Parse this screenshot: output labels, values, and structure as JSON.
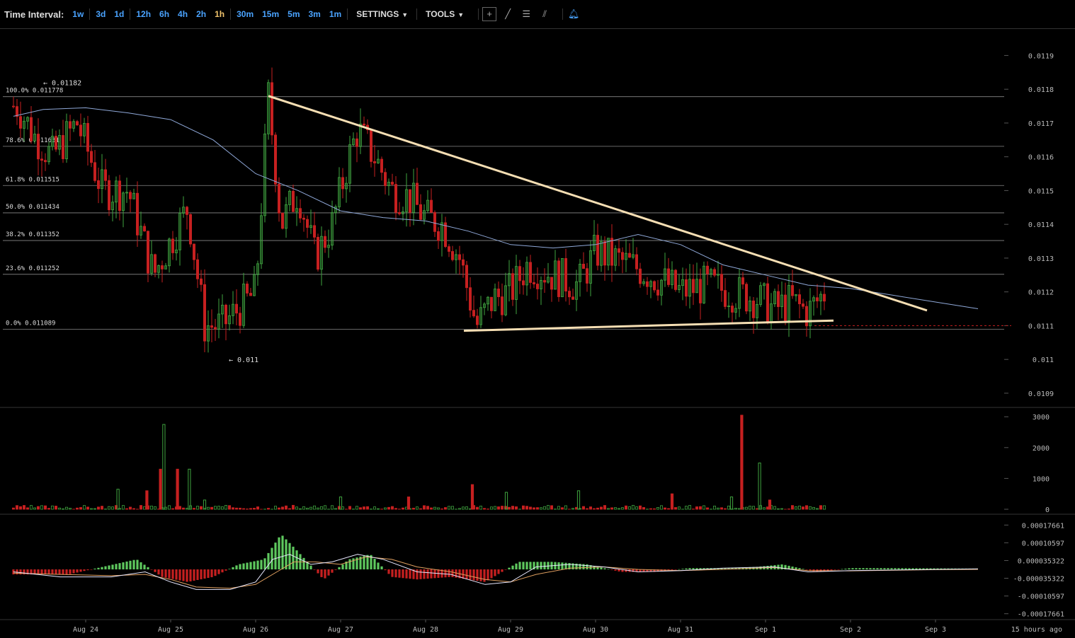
{
  "toolbar": {
    "time_interval_label": "Time Interval:",
    "intervals": [
      "1w",
      "3d",
      "1d",
      "12h",
      "6h",
      "4h",
      "2h",
      "1h",
      "30m",
      "15m",
      "5m",
      "3m",
      "1m"
    ],
    "active_interval": "1h",
    "settings_label": "SETTINGS",
    "tools_label": "TOOLS",
    "tool_icons": [
      "crosshair-icon",
      "trendline-icon",
      "horizontal-lines-icon",
      "fib-fan-icon"
    ],
    "alert_icon": "bell-icon"
  },
  "colors": {
    "up": "#3fa33f",
    "down": "#c62020",
    "ma_line": "#8fa8d8",
    "trendline": "#f5deb3",
    "macd_line": "#e8e8ff",
    "signal_line": "#e0a060",
    "grid": "#888888"
  },
  "chart_data": [
    {
      "type": "candlestick",
      "panel": "price",
      "y_ticks": [
        "0.0119",
        "0.0118",
        "0.0117",
        "0.0116",
        "0.0115",
        "0.0114",
        "0.0113",
        "0.0112",
        "0.0111",
        "0.011",
        "0.0109"
      ],
      "ylim": [
        0.01086,
        0.01197
      ],
      "x_ticks": [
        "Aug 24",
        "Aug 25",
        "Aug 26",
        "Aug 27",
        "Aug 28",
        "Aug 29",
        "Aug 30",
        "Aug 31",
        "Sep 1",
        "Sep 2",
        "Sep 3"
      ],
      "x_end_label": "15 hours ago",
      "fib_levels": [
        {
          "label": "100.0% 0.011778",
          "value": 0.011778
        },
        {
          "label": "78.6% 0.011631",
          "value": 0.011631
        },
        {
          "label": "61.8% 0.011515",
          "value": 0.011515
        },
        {
          "label": "50.0% 0.011434",
          "value": 0.011434
        },
        {
          "label": "38.2% 0.011352",
          "value": 0.011352
        },
        {
          "label": "23.6% 0.011252",
          "value": 0.011252
        },
        {
          "label": "0.0% 0.011089",
          "value": 0.011089
        }
      ],
      "annotations": [
        {
          "text": "← 0.01182",
          "value": 0.01182,
          "day": 0.0
        },
        {
          "text": "← 0.011",
          "value": 0.011,
          "day": 1.4
        }
      ],
      "trendlines": [
        {
          "name": "resistance",
          "from": {
            "day": 2.15,
            "value": 0.01178
          },
          "to": {
            "day": 9.9,
            "value": 0.011145
          }
        },
        {
          "name": "support",
          "from": {
            "day": 4.45,
            "value": 0.011085
          },
          "to": {
            "day": 8.8,
            "value": 0.011115
          }
        }
      ],
      "moving_average": [
        {
          "day": -0.85,
          "value": 0.01172
        },
        {
          "day": -0.5,
          "value": 0.01174
        },
        {
          "day": 0.0,
          "value": 0.011745
        },
        {
          "day": 0.5,
          "value": 0.01173
        },
        {
          "day": 1.0,
          "value": 0.01171
        },
        {
          "day": 1.5,
          "value": 0.01165
        },
        {
          "day": 2.0,
          "value": 0.01155
        },
        {
          "day": 2.5,
          "value": 0.0115
        },
        {
          "day": 3.0,
          "value": 0.01144
        },
        {
          "day": 3.5,
          "value": 0.01142
        },
        {
          "day": 4.0,
          "value": 0.01141
        },
        {
          "day": 4.5,
          "value": 0.01138
        },
        {
          "day": 5.0,
          "value": 0.01134
        },
        {
          "day": 5.5,
          "value": 0.01133
        },
        {
          "day": 6.0,
          "value": 0.01134
        },
        {
          "day": 6.5,
          "value": 0.01137
        },
        {
          "day": 7.0,
          "value": 0.01134
        },
        {
          "day": 7.5,
          "value": 0.01128
        },
        {
          "day": 8.0,
          "value": 0.01125
        },
        {
          "day": 8.5,
          "value": 0.01122
        },
        {
          "day": 9.0,
          "value": 0.01121
        },
        {
          "day": 9.5,
          "value": 0.01119
        },
        {
          "day": 10.0,
          "value": 0.01117
        },
        {
          "day": 10.5,
          "value": 0.01115
        }
      ],
      "candles_summary": {
        "points": [
          {
            "day": -0.8,
            "value": 0.01175
          },
          {
            "day": -0.6,
            "value": 0.01166
          },
          {
            "day": -0.4,
            "value": 0.0116
          },
          {
            "day": -0.1,
            "value": 0.0117
          },
          {
            "day": 0.2,
            "value": 0.0115
          },
          {
            "day": 0.5,
            "value": 0.0115
          },
          {
            "day": 0.8,
            "value": 0.01125
          },
          {
            "day": 1.0,
            "value": 0.01135
          },
          {
            "day": 1.2,
            "value": 0.01145
          },
          {
            "day": 1.4,
            "value": 0.0111
          },
          {
            "day": 1.6,
            "value": 0.0111
          },
          {
            "day": 1.8,
            "value": 0.01115
          },
          {
            "day": 2.0,
            "value": 0.0112
          },
          {
            "day": 2.15,
            "value": 0.01178
          },
          {
            "day": 2.3,
            "value": 0.0114
          },
          {
            "day": 2.5,
            "value": 0.0115
          },
          {
            "day": 2.7,
            "value": 0.0113
          },
          {
            "day": 2.9,
            "value": 0.0114
          },
          {
            "day": 3.1,
            "value": 0.0116
          },
          {
            "day": 3.2,
            "value": 0.01168
          },
          {
            "day": 3.4,
            "value": 0.0116
          },
          {
            "day": 3.6,
            "value": 0.0115
          },
          {
            "day": 3.8,
            "value": 0.01148
          },
          {
            "day": 4.0,
            "value": 0.01142
          },
          {
            "day": 4.2,
            "value": 0.0114
          },
          {
            "day": 4.4,
            "value": 0.0113
          },
          {
            "day": 4.6,
            "value": 0.0111
          },
          {
            "day": 4.8,
            "value": 0.01118
          },
          {
            "day": 5.0,
            "value": 0.0112
          },
          {
            "day": 5.2,
            "value": 0.01128
          },
          {
            "day": 5.5,
            "value": 0.01125
          },
          {
            "day": 5.8,
            "value": 0.01122
          },
          {
            "day": 6.0,
            "value": 0.01132
          },
          {
            "day": 6.2,
            "value": 0.0113
          },
          {
            "day": 6.5,
            "value": 0.01127
          },
          {
            "day": 6.8,
            "value": 0.01123
          },
          {
            "day": 7.0,
            "value": 0.0112
          },
          {
            "day": 7.3,
            "value": 0.01122
          },
          {
            "day": 7.6,
            "value": 0.0112
          },
          {
            "day": 7.9,
            "value": 0.01118
          },
          {
            "day": 8.1,
            "value": 0.01115
          },
          {
            "day": 8.3,
            "value": 0.01117
          },
          {
            "day": 8.5,
            "value": 0.01114
          },
          {
            "day": 8.7,
            "value": 0.0112
          }
        ],
        "last_price": 0.0111
      }
    },
    {
      "type": "bar",
      "panel": "volume",
      "y_ticks": [
        "3000",
        "2000",
        "1000",
        "0"
      ],
      "ylim": [
        0,
        3050
      ],
      "spikes": [
        {
          "day": 0.38,
          "value": 650,
          "dir": "up"
        },
        {
          "day": 0.72,
          "value": 600,
          "dir": "down"
        },
        {
          "day": 0.88,
          "value": 1300,
          "dir": "down"
        },
        {
          "day": 0.92,
          "value": 2750,
          "dir": "up"
        },
        {
          "day": 1.08,
          "value": 1300,
          "dir": "down"
        },
        {
          "day": 1.22,
          "value": 1300,
          "dir": "up"
        },
        {
          "day": 1.4,
          "value": 300,
          "dir": "up"
        },
        {
          "day": 3.0,
          "value": 400,
          "dir": "up"
        },
        {
          "day": 3.8,
          "value": 400,
          "dir": "down"
        },
        {
          "day": 4.55,
          "value": 800,
          "dir": "down"
        },
        {
          "day": 4.95,
          "value": 550,
          "dir": "up"
        },
        {
          "day": 5.8,
          "value": 600,
          "dir": "up"
        },
        {
          "day": 6.9,
          "value": 500,
          "dir": "down"
        },
        {
          "day": 7.6,
          "value": 400,
          "dir": "up"
        },
        {
          "day": 7.72,
          "value": 3050,
          "dir": "down"
        },
        {
          "day": 7.93,
          "value": 1500,
          "dir": "up"
        },
        {
          "day": 8.05,
          "value": 300,
          "dir": "down"
        }
      ]
    },
    {
      "type": "macd",
      "panel": "indicator",
      "y_ticks": [
        "0.00017661",
        "0.00010597",
        "0.000035322",
        "-0.000035322",
        "-0.00010597",
        "-0.00017661"
      ],
      "ylim": [
        -0.0002,
        0.0002
      ],
      "histogram": [
        {
          "day": -0.85,
          "value": -2e-05
        },
        {
          "day": -0.5,
          "value": -2e-05
        },
        {
          "day": -0.2,
          "value": -2e-05
        },
        {
          "day": 0.2,
          "value": 1e-05
        },
        {
          "day": 0.6,
          "value": 4e-05
        },
        {
          "day": 0.9,
          "value": -3e-05
        },
        {
          "day": 1.2,
          "value": -5e-05
        },
        {
          "day": 1.5,
          "value": -3e-05
        },
        {
          "day": 1.8,
          "value": 2e-05
        },
        {
          "day": 2.1,
          "value": 4e-05
        },
        {
          "day": 2.3,
          "value": 0.00014
        },
        {
          "day": 2.5,
          "value": 7e-05
        },
        {
          "day": 2.8,
          "value": -4e-05
        },
        {
          "day": 3.1,
          "value": 4e-05
        },
        {
          "day": 3.35,
          "value": 6e-05
        },
        {
          "day": 3.6,
          "value": -3e-05
        },
        {
          "day": 3.9,
          "value": -4e-05
        },
        {
          "day": 4.3,
          "value": -3e-05
        },
        {
          "day": 4.7,
          "value": -5e-05
        },
        {
          "day": 5.1,
          "value": 3e-05
        },
        {
          "day": 5.5,
          "value": 3e-05
        },
        {
          "day": 5.9,
          "value": 2e-05
        },
        {
          "day": 6.3,
          "value": -1e-05
        },
        {
          "day": 6.7,
          "value": -1e-05
        },
        {
          "day": 7.1,
          "value": 5e-06
        },
        {
          "day": 7.5,
          "value": 5e-06
        },
        {
          "day": 7.9,
          "value": 1e-05
        },
        {
          "day": 8.2,
          "value": 2e-05
        },
        {
          "day": 8.6,
          "value": -1e-05
        },
        {
          "day": 9.0,
          "value": 5e-06
        },
        {
          "day": 9.5,
          "value": 5e-06
        },
        {
          "day": 10.0,
          "value": 4e-06
        },
        {
          "day": 10.5,
          "value": 3e-06
        }
      ],
      "macd_line": [
        {
          "day": -0.85,
          "value": -1e-05
        },
        {
          "day": -0.3,
          "value": -3e-05
        },
        {
          "day": 0.3,
          "value": -3e-05
        },
        {
          "day": 0.7,
          "value": -1e-05
        },
        {
          "day": 1.0,
          "value": -5e-05
        },
        {
          "day": 1.3,
          "value": -8e-05
        },
        {
          "day": 1.7,
          "value": -8e-05
        },
        {
          "day": 2.0,
          "value": -5e-05
        },
        {
          "day": 2.2,
          "value": 4e-05
        },
        {
          "day": 2.4,
          "value": 6e-05
        },
        {
          "day": 2.65,
          "value": 2e-05
        },
        {
          "day": 2.9,
          "value": 3e-05
        },
        {
          "day": 3.2,
          "value": 6e-05
        },
        {
          "day": 3.5,
          "value": 4e-05
        },
        {
          "day": 3.9,
          "value": -1e-05
        },
        {
          "day": 4.3,
          "value": -2e-05
        },
        {
          "day": 4.7,
          "value": -6e-05
        },
        {
          "day": 5.0,
          "value": -5e-05
        },
        {
          "day": 5.3,
          "value": 1e-05
        },
        {
          "day": 5.7,
          "value": 2e-05
        },
        {
          "day": 6.1,
          "value": 1e-05
        },
        {
          "day": 6.5,
          "value": -1e-05
        },
        {
          "day": 7.0,
          "value": -5e-06
        },
        {
          "day": 7.5,
          "value": 5e-06
        },
        {
          "day": 8.1,
          "value": 1e-05
        },
        {
          "day": 8.5,
          "value": -1e-05
        },
        {
          "day": 9.0,
          "value": -5e-06
        },
        {
          "day": 10.0,
          "value": 0.0
        },
        {
          "day": 10.5,
          "value": 2e-06
        }
      ],
      "signal_line": [
        {
          "day": -0.85,
          "value": -1.5e-05
        },
        {
          "day": -0.3,
          "value": -2e-05
        },
        {
          "day": 0.3,
          "value": -2.5e-05
        },
        {
          "day": 0.7,
          "value": -2e-05
        },
        {
          "day": 1.0,
          "value": -4e-05
        },
        {
          "day": 1.3,
          "value": -7e-05
        },
        {
          "day": 1.7,
          "value": -7.5e-05
        },
        {
          "day": 2.0,
          "value": -6e-05
        },
        {
          "day": 2.25,
          "value": -1e-05
        },
        {
          "day": 2.45,
          "value": 3e-05
        },
        {
          "day": 2.7,
          "value": 3e-05
        },
        {
          "day": 3.0,
          "value": 2e-05
        },
        {
          "day": 3.3,
          "value": 5e-05
        },
        {
          "day": 3.6,
          "value": 4e-05
        },
        {
          "day": 3.9,
          "value": 1e-05
        },
        {
          "day": 4.3,
          "value": -1e-05
        },
        {
          "day": 4.7,
          "value": -4e-05
        },
        {
          "day": 5.0,
          "value": -5e-05
        },
        {
          "day": 5.3,
          "value": -2e-05
        },
        {
          "day": 5.7,
          "value": 5e-06
        },
        {
          "day": 6.1,
          "value": 1e-05
        },
        {
          "day": 6.5,
          "value": 0.0
        },
        {
          "day": 7.0,
          "value": -5e-06
        },
        {
          "day": 7.5,
          "value": 0.0
        },
        {
          "day": 8.1,
          "value": 8e-06
        },
        {
          "day": 8.5,
          "value": -5e-06
        },
        {
          "day": 9.0,
          "value": -6e-06
        },
        {
          "day": 10.0,
          "value": -1e-06
        },
        {
          "day": 10.5,
          "value": 0.0
        }
      ]
    }
  ]
}
